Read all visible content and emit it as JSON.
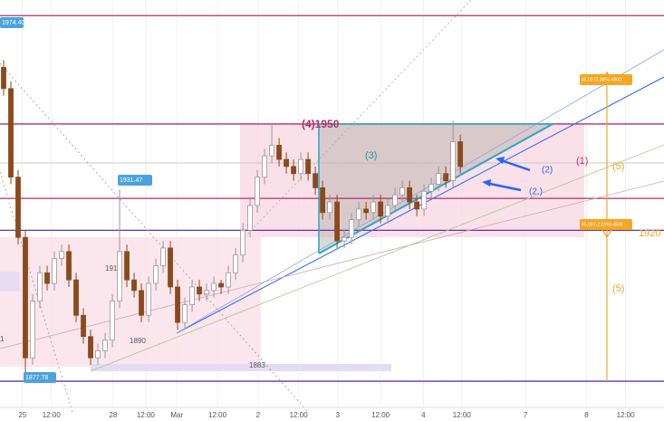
{
  "chart_data": {
    "type": "candlestick",
    "open": [
      1966,
      1960,
      1935,
      1918,
      1884,
      1900,
      1908,
      1905,
      1912,
      1914,
      1906,
      1896,
      1890,
      1884,
      1886,
      1889,
      1900,
      1914,
      1906,
      1903,
      1896,
      1905,
      1910,
      1915,
      1904,
      1894,
      1899,
      1904,
      1902,
      1903,
      1905,
      1904,
      1908,
      1913,
      1920,
      1927,
      1935,
      1941,
      1944,
      1940,
      1938,
      1936,
      1940,
      1936,
      1932,
      1925,
      1928,
      1917,
      1918,
      1923,
      1926,
      1925,
      1928,
      1924,
      1927,
      1930,
      1932,
      1928,
      1926,
      1931,
      1933,
      1936,
      1934,
      1945
    ],
    "high": [
      1968,
      1962,
      1937,
      1920,
      1902,
      1910,
      1910,
      1914,
      1916,
      1916,
      1908,
      1898,
      1892,
      1888,
      1891,
      1902,
      1931.47,
      1916,
      1908,
      1905,
      1907,
      1912,
      1917,
      1917,
      1906,
      1901,
      1906,
      1906,
      1905,
      1907,
      1906,
      1910,
      1915,
      1922,
      1929,
      1937,
      1943,
      1950,
      1946,
      1942,
      1940,
      1942,
      1942,
      1938,
      1934,
      1930,
      1930,
      1920,
      1925,
      1928,
      1928,
      1930,
      1930,
      1929,
      1932,
      1934,
      1934,
      1930,
      1933,
      1935,
      1938,
      1938,
      1951,
      1947
    ],
    "low": [
      1958,
      1933,
      1916,
      1877.78,
      1882,
      1898,
      1903,
      1903,
      1910,
      1904,
      1894,
      1888,
      1882,
      1882,
      1884,
      1887,
      1898,
      1904,
      1901,
      1894,
      1894,
      1903,
      1908,
      1902,
      1892,
      1892,
      1897,
      1900,
      1900,
      1901,
      1902,
      1902,
      1906,
      1911,
      1918,
      1925,
      1933,
      1939,
      1938,
      1936,
      1934,
      1934,
      1934,
      1930,
      1923,
      1923,
      1915,
      1915,
      1916,
      1921,
      1923,
      1923,
      1922,
      1922,
      1925,
      1928,
      1926,
      1924,
      1924,
      1929,
      1931,
      1932,
      1932,
      1936
    ],
    "close": [
      1960,
      1935,
      1918,
      1884,
      1900,
      1908,
      1905,
      1912,
      1914,
      1906,
      1896,
      1890,
      1884,
      1886,
      1889,
      1900,
      1914,
      1906,
      1903,
      1896,
      1905,
      1910,
      1915,
      1904,
      1894,
      1899,
      1904,
      1902,
      1903,
      1905,
      1904,
      1908,
      1913,
      1920,
      1927,
      1935,
      1941,
      1944,
      1940,
      1938,
      1936,
      1940,
      1936,
      1932,
      1925,
      1928,
      1917,
      1918,
      1923,
      1926,
      1925,
      1928,
      1924,
      1927,
      1930,
      1932,
      1928,
      1926,
      1931,
      1933,
      1936,
      1934,
      1945,
      1938
    ],
    "up_color": "#d9d9d9",
    "down_color": "#8b4a1c",
    "ylim": [
      1985,
      1870
    ],
    "xlim": [
      -0.5,
      91.1
    ],
    "xticks": [
      {
        "value": 2.6,
        "label": "25"
      },
      {
        "value": 6.6,
        "label": "12:00"
      },
      {
        "value": 15.1,
        "label": "28"
      },
      {
        "value": 19.6,
        "label": "12:00"
      },
      {
        "value": 23.9,
        "label": "Mar"
      },
      {
        "value": 29.5,
        "label": "12:00"
      },
      {
        "value": 35.1,
        "label": "2"
      },
      {
        "value": 40.7,
        "label": "12:00"
      },
      {
        "value": 46.1,
        "label": "3"
      },
      {
        "value": 52,
        "label": "12:00"
      },
      {
        "value": 57.9,
        "label": "4"
      },
      {
        "value": 63.2,
        "label": "12:00"
      },
      {
        "value": 72,
        "label": "7"
      },
      {
        "value": 80.4,
        "label": "8"
      },
      {
        "value": 85.8,
        "label": "12:00"
      }
    ],
    "levels": [
      1980.6,
      1950,
      1939,
      1929,
      1920,
      1877.4
    ],
    "level_colors": [
      "#b0306a",
      "#b0306a",
      "#bbbbbb",
      "#b0306a",
      "#5e35b1",
      "#5e35b1"
    ],
    "annotations": [
      "1974.40",
      "1931.47",
      "1877.78",
      "(4)1950",
      "(3)",
      "(1)",
      "(2)",
      "(2.)",
      "(5)",
      "(5)",
      "1920",
      "1890",
      "1883",
      "191",
      "1",
      "45.00 (2.38%) 4500",
      "45.00 (-2.13%) 4500"
    ]
  }
}
